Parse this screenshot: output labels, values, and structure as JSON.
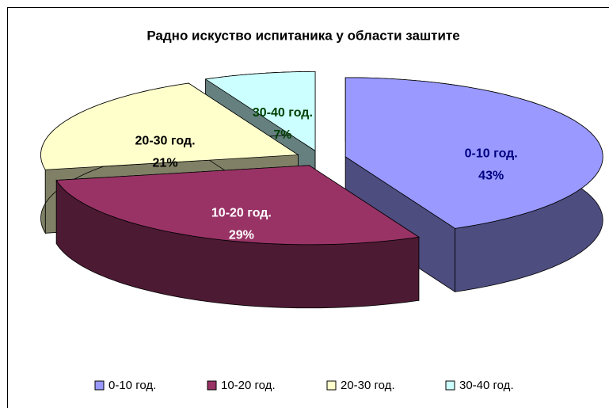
{
  "chart_data": {
    "type": "pie3d",
    "title": "Радно искуство испитаника у области заштите",
    "categories": [
      "0-10 год.",
      "10-20 год.",
      "20-30 год.",
      "30-40 год."
    ],
    "values": [
      43,
      29,
      21,
      7
    ],
    "value_labels": [
      "43%",
      "29%",
      "21%",
      "7%"
    ],
    "colors": [
      "#9999ff",
      "#993366",
      "#ffffcc",
      "#ccffff"
    ],
    "label_colors": [
      "#000080",
      "#ffffff",
      "#000000",
      "#004000"
    ],
    "legend": "bottom"
  }
}
